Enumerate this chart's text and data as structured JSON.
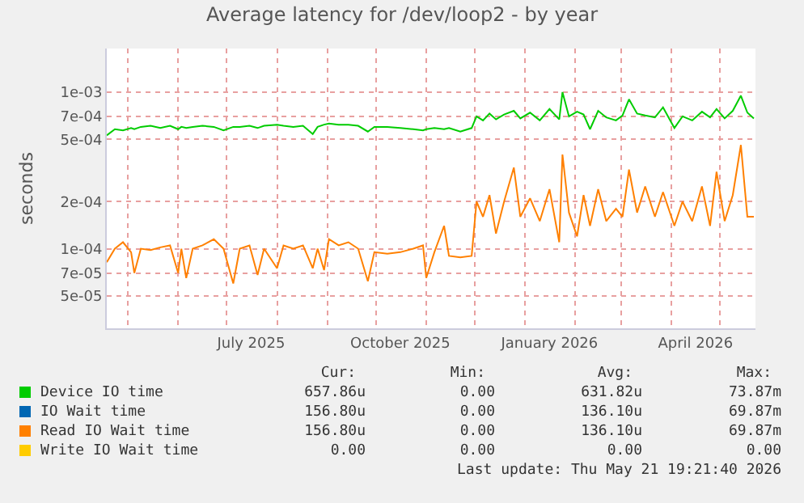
{
  "chart_data": {
    "type": "line",
    "title": "Average latency for /dev/loop2 - by year",
    "ylabel": "seconds",
    "x": [
      "2025-04-18",
      "2025-04-23",
      "2025-04-28",
      "2025-05-03",
      "2025-05-05",
      "2025-05-09",
      "2025-05-15",
      "2025-05-21",
      "2025-05-27",
      "2025-06-01",
      "2025-06-03",
      "2025-06-06",
      "2025-06-10",
      "2025-06-16",
      "2025-06-23",
      "2025-06-29",
      "2025-07-05",
      "2025-07-09",
      "2025-07-15",
      "2025-07-20",
      "2025-07-24",
      "2025-08-01",
      "2025-08-05",
      "2025-08-11",
      "2025-08-17",
      "2025-08-23",
      "2025-08-26",
      "2025-08-30",
      "2025-09-02",
      "2025-09-08",
      "2025-09-14",
      "2025-09-20",
      "2025-09-26",
      "2025-09-30",
      "2025-10-08",
      "2025-10-16",
      "2025-10-24",
      "2025-10-30",
      "2025-11-01",
      "2025-11-06",
      "2025-11-12",
      "2025-11-15",
      "2025-11-22",
      "2025-11-29",
      "2025-12-02",
      "2025-12-06",
      "2025-12-10",
      "2025-12-14",
      "2025-12-19",
      "2025-12-25",
      "2025-12-29",
      "2026-01-04",
      "2026-01-10",
      "2026-01-16",
      "2026-01-22",
      "2026-01-24",
      "2026-01-28",
      "2026-02-02",
      "2026-02-06",
      "2026-02-10",
      "2026-02-15",
      "2026-02-20",
      "2026-02-26",
      "2026-03-02",
      "2026-03-06",
      "2026-03-11",
      "2026-03-16",
      "2026-03-22",
      "2026-03-27",
      "2026-04-03",
      "2026-04-08",
      "2026-04-14",
      "2026-04-20",
      "2026-04-25",
      "2026-04-29",
      "2026-05-04",
      "2026-05-09",
      "2026-05-14",
      "2026-05-18",
      "2026-05-22"
    ],
    "series": [
      {
        "name": "Device IO time",
        "color": "#00cc00",
        "values": [
          0.00053,
          0.00058,
          0.00057,
          0.00059,
          0.00058,
          0.0006,
          0.00061,
          0.00059,
          0.00061,
          0.00058,
          0.0006,
          0.00059,
          0.0006,
          0.00061,
          0.0006,
          0.00057,
          0.0006,
          0.0006,
          0.00061,
          0.00059,
          0.00061,
          0.00062,
          0.00061,
          0.0006,
          0.00061,
          0.00054,
          0.0006,
          0.00062,
          0.00063,
          0.00062,
          0.00062,
          0.00061,
          0.00056,
          0.0006,
          0.0006,
          0.00059,
          0.00058,
          0.00057,
          0.00058,
          0.00059,
          0.00058,
          0.00059,
          0.00056,
          0.00059,
          0.0007,
          0.00066,
          0.00073,
          0.00067,
          0.00072,
          0.00076,
          0.00068,
          0.00074,
          0.00066,
          0.00078,
          0.00067,
          0.001,
          0.0007,
          0.00075,
          0.00072,
          0.00058,
          0.00076,
          0.00069,
          0.00066,
          0.00071,
          0.0009,
          0.00073,
          0.00071,
          0.00069,
          0.0008,
          0.00059,
          0.0007,
          0.00066,
          0.00075,
          0.00069,
          0.00078,
          0.00068,
          0.00076,
          0.00095,
          0.00074,
          0.00068
        ]
      },
      {
        "name": "IO Wait time",
        "color": "#0066b3",
        "values": [
          null,
          null,
          null,
          null,
          null,
          null,
          null,
          null,
          null,
          null,
          null,
          null,
          null,
          null,
          null,
          null,
          null,
          null,
          null,
          null,
          null,
          null,
          null,
          null,
          null,
          null,
          null,
          null,
          null,
          null,
          null,
          null,
          null,
          null,
          null,
          null,
          null,
          null,
          null,
          null,
          null,
          null,
          null,
          null,
          null,
          null,
          null,
          null,
          null,
          null,
          null,
          null,
          null,
          null,
          null,
          null,
          null,
          null,
          null,
          null,
          null,
          null,
          null,
          null,
          null,
          null,
          null,
          null,
          null,
          null,
          null,
          null,
          null,
          null,
          null,
          null,
          null,
          null,
          null,
          null
        ]
      },
      {
        "name": "Read IO Wait time",
        "color": "#ff8000",
        "values": [
          8.2e-05,
          0.0001,
          0.00011,
          9.5e-05,
          7e-05,
          0.0001,
          9.8e-05,
          0.000102,
          0.000105,
          7e-05,
          0.0001,
          6.5e-05,
          0.0001,
          0.000105,
          0.000115,
          0.0001,
          6e-05,
          0.0001,
          0.000105,
          6.8e-05,
          0.0001,
          7.5e-05,
          0.000105,
          0.0001,
          0.000105,
          7.5e-05,
          0.0001,
          7.3e-05,
          0.000115,
          0.000105,
          0.00011,
          0.0001,
          6.2e-05,
          9.5e-05,
          9.3e-05,
          9.5e-05,
          0.0001,
          0.000105,
          6.5e-05,
          9.5e-05,
          0.00014,
          9e-05,
          8.8e-05,
          9e-05,
          0.0002,
          0.00016,
          0.00022,
          0.000125,
          0.0002,
          0.00033,
          0.00016,
          0.00021,
          0.00015,
          0.00024,
          0.00011,
          0.0004,
          0.00017,
          0.00012,
          0.00022,
          0.00014,
          0.00024,
          0.00015,
          0.00018,
          0.00016,
          0.00032,
          0.00017,
          0.00025,
          0.00016,
          0.00023,
          0.00014,
          0.0002,
          0.00015,
          0.00025,
          0.00014,
          0.00031,
          0.00015,
          0.00022,
          0.00046,
          0.00016,
          0.00016
        ]
      },
      {
        "name": "Write IO Wait time",
        "color": "#ffcc00",
        "values": [
          null,
          null,
          null,
          null,
          null,
          null,
          null,
          null,
          null,
          null,
          null,
          null,
          null,
          null,
          null,
          null,
          null,
          null,
          null,
          null,
          null,
          null,
          null,
          null,
          null,
          null,
          null,
          null,
          null,
          null,
          null,
          null,
          null,
          null,
          null,
          null,
          null,
          null,
          null,
          null,
          null,
          null,
          null,
          null,
          null,
          null,
          null,
          null,
          null,
          null,
          null,
          null,
          null,
          null,
          null,
          null,
          null,
          null,
          null,
          null,
          null,
          null,
          null,
          null,
          null,
          null,
          null,
          null,
          null,
          null,
          null,
          null,
          null,
          null,
          null,
          null,
          null,
          null,
          null,
          null
        ]
      }
    ],
    "log": true,
    "xlim": [
      "2025-04-18",
      "2026-05-23"
    ],
    "xticks": [
      {
        "value": "2025-07-16",
        "label": "July 2025"
      },
      {
        "value": "2025-10-16",
        "label": "October 2025"
      },
      {
        "value": "2026-01-16",
        "label": "January 2026"
      },
      {
        "value": "2026-04-16",
        "label": "April 2026"
      }
    ],
    "ylim": [
      3.1e-05,
      0.0019
    ],
    "yticks": [
      {
        "value": 5e-05,
        "label": "5e-05"
      },
      {
        "value": 7e-05,
        "label": "7e-05"
      },
      {
        "value": 0.0001,
        "label": "1e-04"
      },
      {
        "value": 0.0002,
        "label": "2e-04"
      },
      {
        "value": 0.0005,
        "label": "5e-04"
      },
      {
        "value": 0.0007,
        "label": "7e-04"
      },
      {
        "value": 0.001,
        "label": "1e-03"
      }
    ],
    "grid": true,
    "legend": "bottom",
    "annotations": [
      "Cur:",
      "Min:",
      "Avg:",
      "Max:",
      "657.86u",
      "0.00",
      "631.82u",
      "73.87m",
      "156.80u",
      "0.00",
      "136.10u",
      "69.87m",
      "156.80u",
      "0.00",
      "136.10u",
      "69.87m",
      "0.00",
      "0.00",
      "0.00",
      "0.00",
      "Last update: Thu May 21 19:21:40 2026"
    ]
  }
}
